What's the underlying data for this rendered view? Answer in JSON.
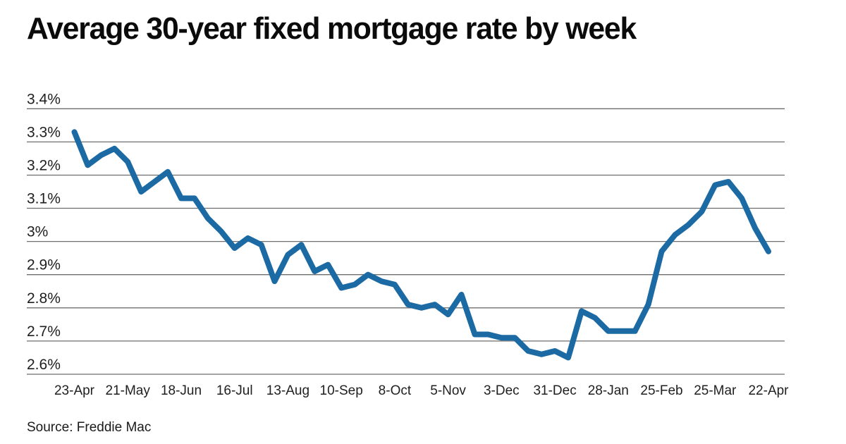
{
  "source_note": "Source: Freddie Mac",
  "chart_data": {
    "type": "line",
    "title": "Average 30-year fixed mortgage rate by week",
    "xlabel": "",
    "ylabel": "",
    "ylim": [
      2.6,
      3.4
    ],
    "grid": "horizontal",
    "legend": "none",
    "y_tick_labels": [
      "3.4%",
      "3.3%",
      "3.2%",
      "3.1%",
      "3%",
      "2.9%",
      "2.8%",
      "2.7%",
      "2.6%"
    ],
    "y_tick_values": [
      3.4,
      3.3,
      3.2,
      3.1,
      3.0,
      2.9,
      2.8,
      2.7,
      2.6
    ],
    "x_tick_labels": [
      "23-Apr",
      "21-May",
      "18-Jun",
      "16-Jul",
      "13-Aug",
      "10-Sep",
      "8-Oct",
      "5-Nov",
      "3-Dec",
      "31-Dec",
      "28-Jan",
      "25-Feb",
      "25-Mar",
      "22-Apr"
    ],
    "x_tick_week_indices": [
      0,
      4,
      8,
      12,
      16,
      20,
      24,
      28,
      32,
      36,
      40,
      44,
      48,
      52
    ],
    "x_unit": "week",
    "colors": {
      "line": "#1c6aa4",
      "grid": "#6e6e6e",
      "axis_text": "#1f1f1f"
    },
    "series": [
      {
        "name": "Average 30-year fixed mortgage rate",
        "color": "#1c6aa4",
        "values": [
          3.33,
          3.23,
          3.26,
          3.28,
          3.24,
          3.15,
          3.18,
          3.21,
          3.13,
          3.13,
          3.07,
          3.03,
          2.98,
          3.01,
          2.99,
          2.88,
          2.96,
          2.99,
          2.91,
          2.93,
          2.86,
          2.87,
          2.9,
          2.88,
          2.87,
          2.81,
          2.8,
          2.81,
          2.78,
          2.84,
          2.72,
          2.72,
          2.71,
          2.71,
          2.67,
          2.66,
          2.67,
          2.65,
          2.79,
          2.77,
          2.73,
          2.73,
          2.73,
          2.81,
          2.97,
          3.02,
          3.05,
          3.09,
          3.17,
          3.18,
          3.13,
          3.04,
          2.97
        ]
      }
    ]
  }
}
